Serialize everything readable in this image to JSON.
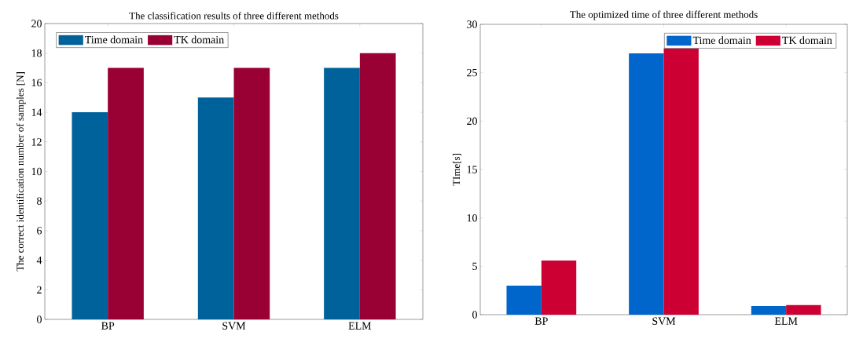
{
  "chart_data": [
    {
      "type": "bar",
      "title": "The classification results of three different methods",
      "ylabel": "The correct identification number of samples [N]",
      "categories": [
        "BP",
        "SVM",
        "ELM"
      ],
      "series": [
        {
          "name": "Time domain",
          "color": "#00629b",
          "values": [
            14,
            15,
            17
          ]
        },
        {
          "name": "TK domain",
          "color": "#990033",
          "values": [
            17,
            17,
            18
          ]
        }
      ],
      "ylim": [
        0,
        20
      ],
      "yticks": [
        0,
        2,
        4,
        6,
        8,
        10,
        12,
        14,
        16,
        18,
        20
      ],
      "legend": "top left"
    },
    {
      "type": "bar",
      "title": "The optimized time of three different methods",
      "ylabel": "TIme[s]",
      "categories": [
        "BP",
        "SVM",
        "ELM"
      ],
      "series": [
        {
          "name": "Time domain",
          "color": "#0066cc",
          "values": [
            3.0,
            27,
            0.9
          ]
        },
        {
          "name": "TK domain",
          "color": "#cc0033",
          "values": [
            5.6,
            27.5,
            1.0
          ]
        }
      ],
      "ylim": [
        0,
        30
      ],
      "yticks": [
        0,
        5,
        10,
        15,
        20,
        25,
        30
      ],
      "legend": "top right"
    }
  ]
}
